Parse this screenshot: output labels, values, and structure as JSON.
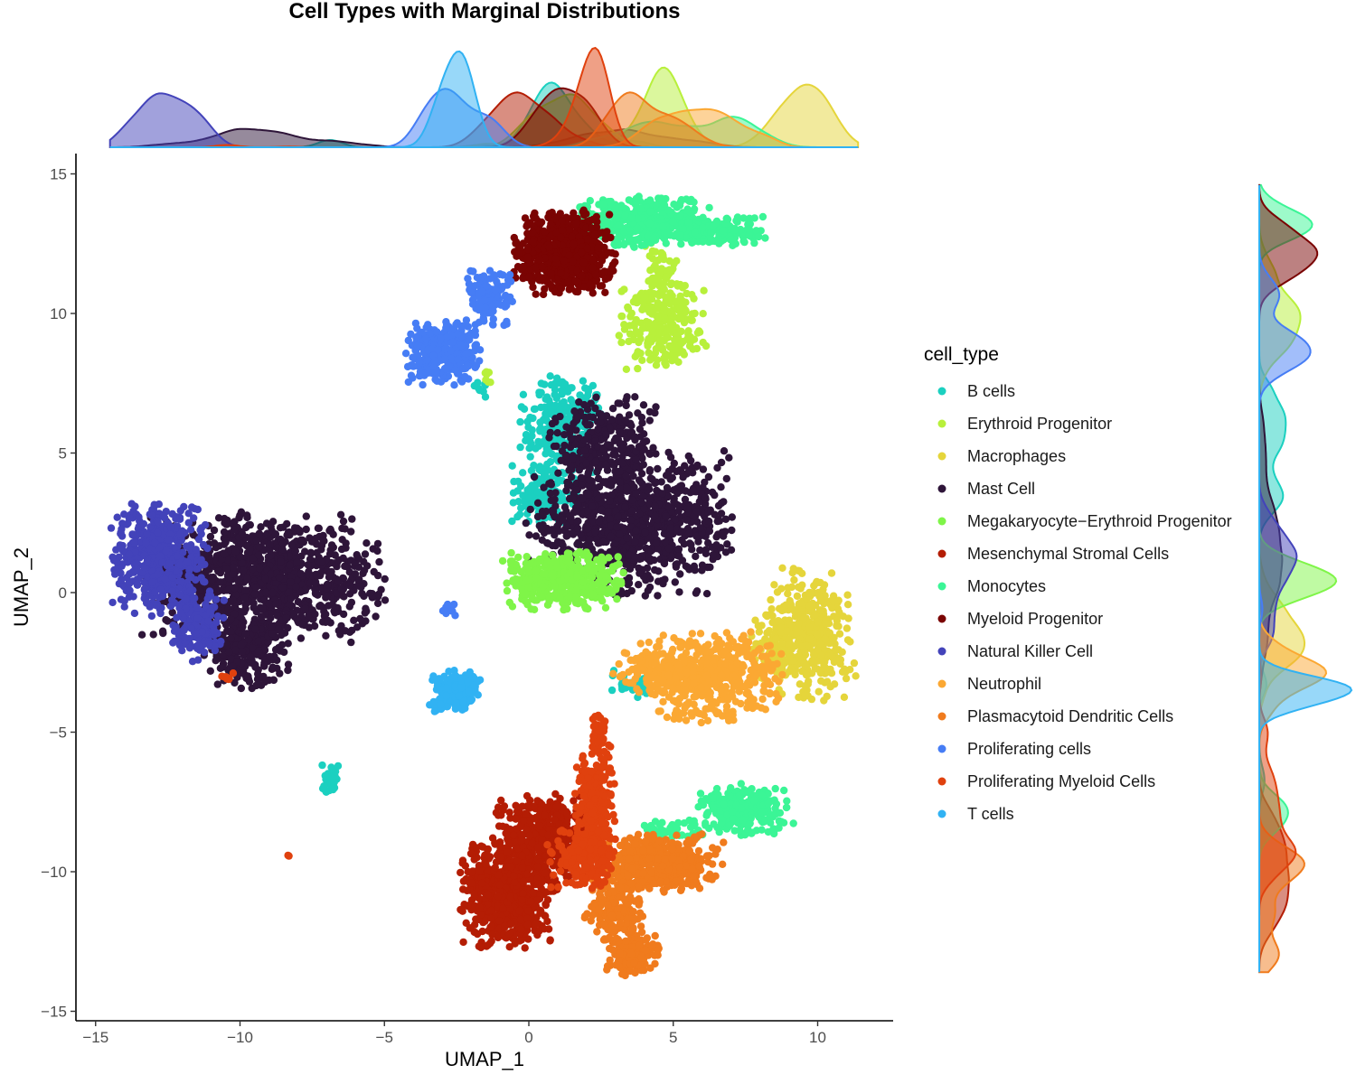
{
  "chart_data": {
    "type": "scatter",
    "title": "Cell Types with Marginal Distributions",
    "xlabel": "UMAP_1",
    "ylabel": "UMAP_2",
    "xlim": [
      -15.5,
      12.7
    ],
    "ylim": [
      -15.5,
      15.7
    ],
    "xticks": [
      -15,
      -10,
      -5,
      0,
      5,
      10
    ],
    "yticks": [
      -15,
      -10,
      -5,
      0,
      5,
      10,
      15
    ],
    "grid": false,
    "legend": {
      "title": "cell_type",
      "placement": "right"
    },
    "marginals": {
      "top": "density of UMAP_1 by cell_type",
      "right": "density of UMAP_2 by cell_type"
    },
    "series": [
      {
        "name": "B cells",
        "color": "#1BD0C0",
        "clusters": [
          {
            "cx": 1.2,
            "cy": 6.0,
            "rx": 1.3,
            "ry": 1.6,
            "n": 260
          },
          {
            "cx": 0.5,
            "cy": 3.6,
            "rx": 1.0,
            "ry": 0.9,
            "n": 150
          },
          {
            "cx": -6.9,
            "cy": -6.7,
            "rx": 0.25,
            "ry": 0.45,
            "n": 25
          },
          {
            "cx": -1.7,
            "cy": 7.3,
            "rx": 0.2,
            "ry": 0.25,
            "n": 8
          },
          {
            "cx": 3.5,
            "cy": -3.3,
            "rx": 0.9,
            "ry": 0.5,
            "n": 30
          }
        ]
      },
      {
        "name": "Erythroid Progenitor",
        "color": "#B8F03B",
        "clusters": [
          {
            "cx": 4.6,
            "cy": 9.6,
            "rx": 1.3,
            "ry": 1.4,
            "n": 260
          },
          {
            "cx": 4.6,
            "cy": 11.5,
            "rx": 0.5,
            "ry": 0.9,
            "n": 60
          },
          {
            "cx": -1.4,
            "cy": 7.7,
            "rx": 0.15,
            "ry": 0.3,
            "n": 8
          }
        ]
      },
      {
        "name": "Macrophages",
        "color": "#E5D53B",
        "clusters": [
          {
            "cx": 9.8,
            "cy": -1.5,
            "rx": 1.3,
            "ry": 2.0,
            "n": 380
          },
          {
            "cx": 8.5,
            "cy": -2.0,
            "rx": 0.8,
            "ry": 1.0,
            "n": 80
          }
        ]
      },
      {
        "name": "Mast Cell",
        "color": "#2E1539",
        "clusters": [
          {
            "cx": -9.2,
            "cy": 0.5,
            "rx": 3.6,
            "ry": 2.0,
            "n": 1100
          },
          {
            "cx": -9.8,
            "cy": -2.0,
            "rx": 1.3,
            "ry": 1.2,
            "n": 240
          },
          {
            "cx": 3.5,
            "cy": 2.5,
            "rx": 3.0,
            "ry": 2.2,
            "n": 950
          },
          {
            "cx": 2.6,
            "cy": 5.4,
            "rx": 1.6,
            "ry": 1.4,
            "n": 260
          }
        ]
      },
      {
        "name": "Megakaryocyte−Erythroid Progenitor",
        "color": "#7FF548",
        "clusters": [
          {
            "cx": 1.2,
            "cy": 0.4,
            "rx": 1.8,
            "ry": 0.9,
            "n": 420
          }
        ]
      },
      {
        "name": "Mesenchymal Stromal Cells",
        "color": "#B41D04",
        "clusters": [
          {
            "cx": -0.7,
            "cy": -10.8,
            "rx": 1.4,
            "ry": 1.7,
            "n": 720
          },
          {
            "cx": 0.6,
            "cy": -8.8,
            "rx": 1.5,
            "ry": 1.4,
            "n": 440
          }
        ]
      },
      {
        "name": "Monocytes",
        "color": "#3BF596",
        "clusters": [
          {
            "cx": 4.0,
            "cy": 13.3,
            "rx": 2.0,
            "ry": 0.8,
            "n": 380
          },
          {
            "cx": 6.5,
            "cy": 13.0,
            "rx": 1.6,
            "ry": 0.5,
            "n": 160
          },
          {
            "cx": 7.4,
            "cy": -7.8,
            "rx": 1.5,
            "ry": 0.8,
            "n": 280
          },
          {
            "cx": 5.0,
            "cy": -8.5,
            "rx": 1.2,
            "ry": 0.4,
            "n": 50
          }
        ]
      },
      {
        "name": "Myeloid Progenitor",
        "color": "#7A0403",
        "clusters": [
          {
            "cx": 1.2,
            "cy": 12.2,
            "rx": 1.5,
            "ry": 1.3,
            "n": 600
          }
        ]
      },
      {
        "name": "Natural Killer Cell",
        "color": "#4343BA",
        "clusters": [
          {
            "cx": -12.8,
            "cy": 1.2,
            "rx": 1.4,
            "ry": 1.7,
            "n": 520
          },
          {
            "cx": -11.4,
            "cy": -1.2,
            "rx": 0.8,
            "ry": 1.2,
            "n": 150
          }
        ]
      },
      {
        "name": "Neutrophil",
        "color": "#FBA833",
        "clusters": [
          {
            "cx": 6.2,
            "cy": -3.0,
            "rx": 2.2,
            "ry": 1.4,
            "n": 480
          },
          {
            "cx": 4.3,
            "cy": -2.8,
            "rx": 1.2,
            "ry": 0.6,
            "n": 120
          }
        ]
      },
      {
        "name": "Plasmacytoid Dendritic Cells",
        "color": "#F07B1D",
        "clusters": [
          {
            "cx": 4.6,
            "cy": -9.7,
            "rx": 1.8,
            "ry": 0.9,
            "n": 460
          },
          {
            "cx": 3.0,
            "cy": -11.5,
            "rx": 0.9,
            "ry": 1.1,
            "n": 180
          },
          {
            "cx": 3.6,
            "cy": -13.0,
            "rx": 0.8,
            "ry": 0.6,
            "n": 160
          }
        ]
      },
      {
        "name": "Proliferating cells",
        "color": "#467DF5",
        "clusters": [
          {
            "cx": -3.0,
            "cy": 8.6,
            "rx": 1.1,
            "ry": 1.0,
            "n": 340
          },
          {
            "cx": -1.4,
            "cy": 10.6,
            "rx": 0.7,
            "ry": 0.9,
            "n": 120
          },
          {
            "cx": -2.8,
            "cy": -0.6,
            "rx": 0.25,
            "ry": 0.25,
            "n": 12
          }
        ]
      },
      {
        "name": "Proliferating Myeloid Cells",
        "color": "#E0410E",
        "clusters": [
          {
            "cx": 2.3,
            "cy": -8.0,
            "rx": 0.6,
            "ry": 2.2,
            "n": 300
          },
          {
            "cx": 2.4,
            "cy": -5.0,
            "rx": 0.2,
            "ry": 0.6,
            "n": 40
          },
          {
            "cx": 1.8,
            "cy": -9.5,
            "rx": 1.0,
            "ry": 0.9,
            "n": 150
          },
          {
            "cx": -10.5,
            "cy": -3.0,
            "rx": 0.3,
            "ry": 0.15,
            "n": 8
          },
          {
            "cx": -8.3,
            "cy": -9.4,
            "rx": 0.05,
            "ry": 0.05,
            "n": 2
          }
        ]
      },
      {
        "name": "T cells",
        "color": "#31B2F3",
        "clusters": [
          {
            "cx": -2.5,
            "cy": -3.5,
            "rx": 0.7,
            "ry": 0.6,
            "n": 180
          },
          {
            "cx": -3.2,
            "cy": -4.1,
            "rx": 0.25,
            "ry": 0.2,
            "n": 20
          }
        ]
      }
    ]
  }
}
